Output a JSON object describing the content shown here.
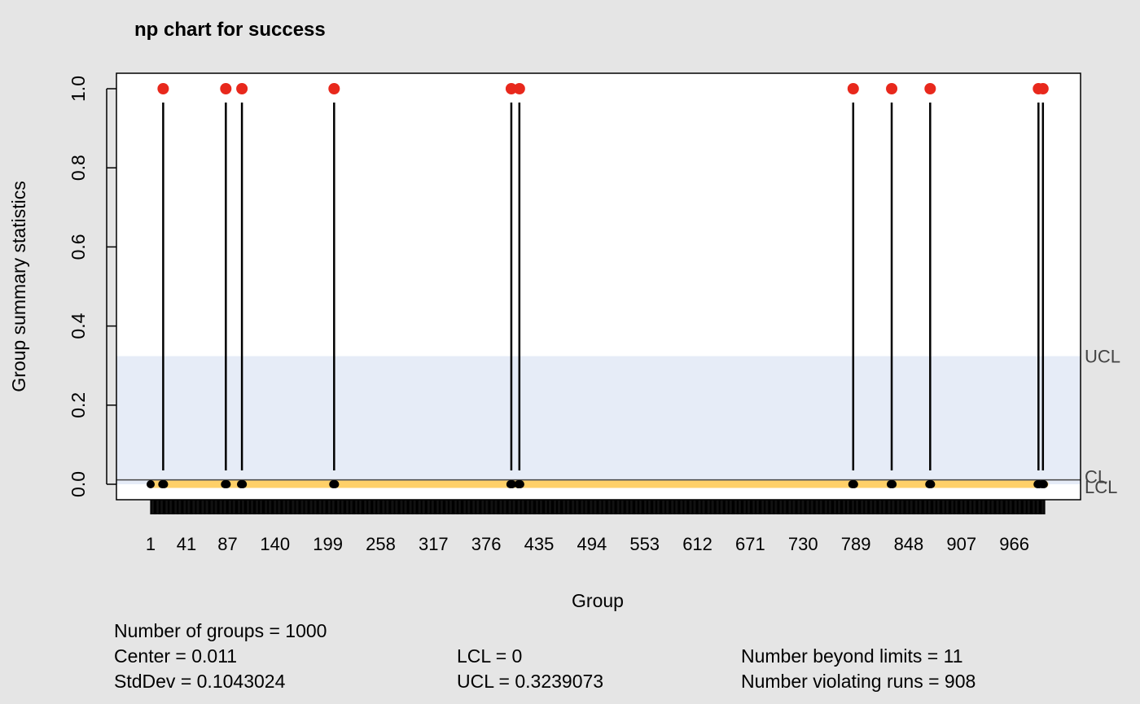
{
  "chart_data": {
    "type": "line",
    "title": "np chart for success",
    "xlabel": "Group",
    "ylabel": "Group summary statistics",
    "ylim": [
      0,
      1
    ],
    "xlim": [
      1,
      1000
    ],
    "y_ticks": [
      0.0,
      0.2,
      0.4,
      0.6,
      0.8,
      1.0
    ],
    "y_tick_labels": [
      "0.0",
      "0.2",
      "0.4",
      "0.6",
      "0.8",
      "1.0"
    ],
    "x_tick_labels": [
      "1",
      "41",
      "87",
      "140",
      "199",
      "258",
      "317",
      "376",
      "435",
      "494",
      "553",
      "612",
      "671",
      "730",
      "789",
      "848",
      "907",
      "966"
    ],
    "n_groups": 1000,
    "baseline_value": 0,
    "beyond_limit_points": [
      {
        "x": 15,
        "y": 1
      },
      {
        "x": 85,
        "y": 1
      },
      {
        "x": 103,
        "y": 1
      },
      {
        "x": 206,
        "y": 1
      },
      {
        "x": 404,
        "y": 1
      },
      {
        "x": 413,
        "y": 1
      },
      {
        "x": 786,
        "y": 1
      },
      {
        "x": 829,
        "y": 1
      },
      {
        "x": 872,
        "y": 1
      },
      {
        "x": 993,
        "y": 1
      },
      {
        "x": 998,
        "y": 1
      }
    ],
    "limits": {
      "UCL": 0.3239073,
      "CL": 0.011,
      "LCL": 0
    },
    "limit_labels": {
      "ucl": "UCL",
      "cl": "CL",
      "lcl": "LCL"
    },
    "colors": {
      "beyond_limits": "#e8281c",
      "violating_runs": "#ffd068",
      "in_control": "#000000",
      "control_band": "#e6ecf7",
      "background": "#e5e5e5"
    }
  },
  "stats": {
    "groups": "Number of groups = 1000",
    "center": "Center = 0.011",
    "stddev": "StdDev = 0.1043024",
    "lcl": "LCL = 0",
    "ucl": "UCL = 0.3239073",
    "beyond": "Number beyond limits = 11",
    "runs": "Number violating runs = 908"
  }
}
